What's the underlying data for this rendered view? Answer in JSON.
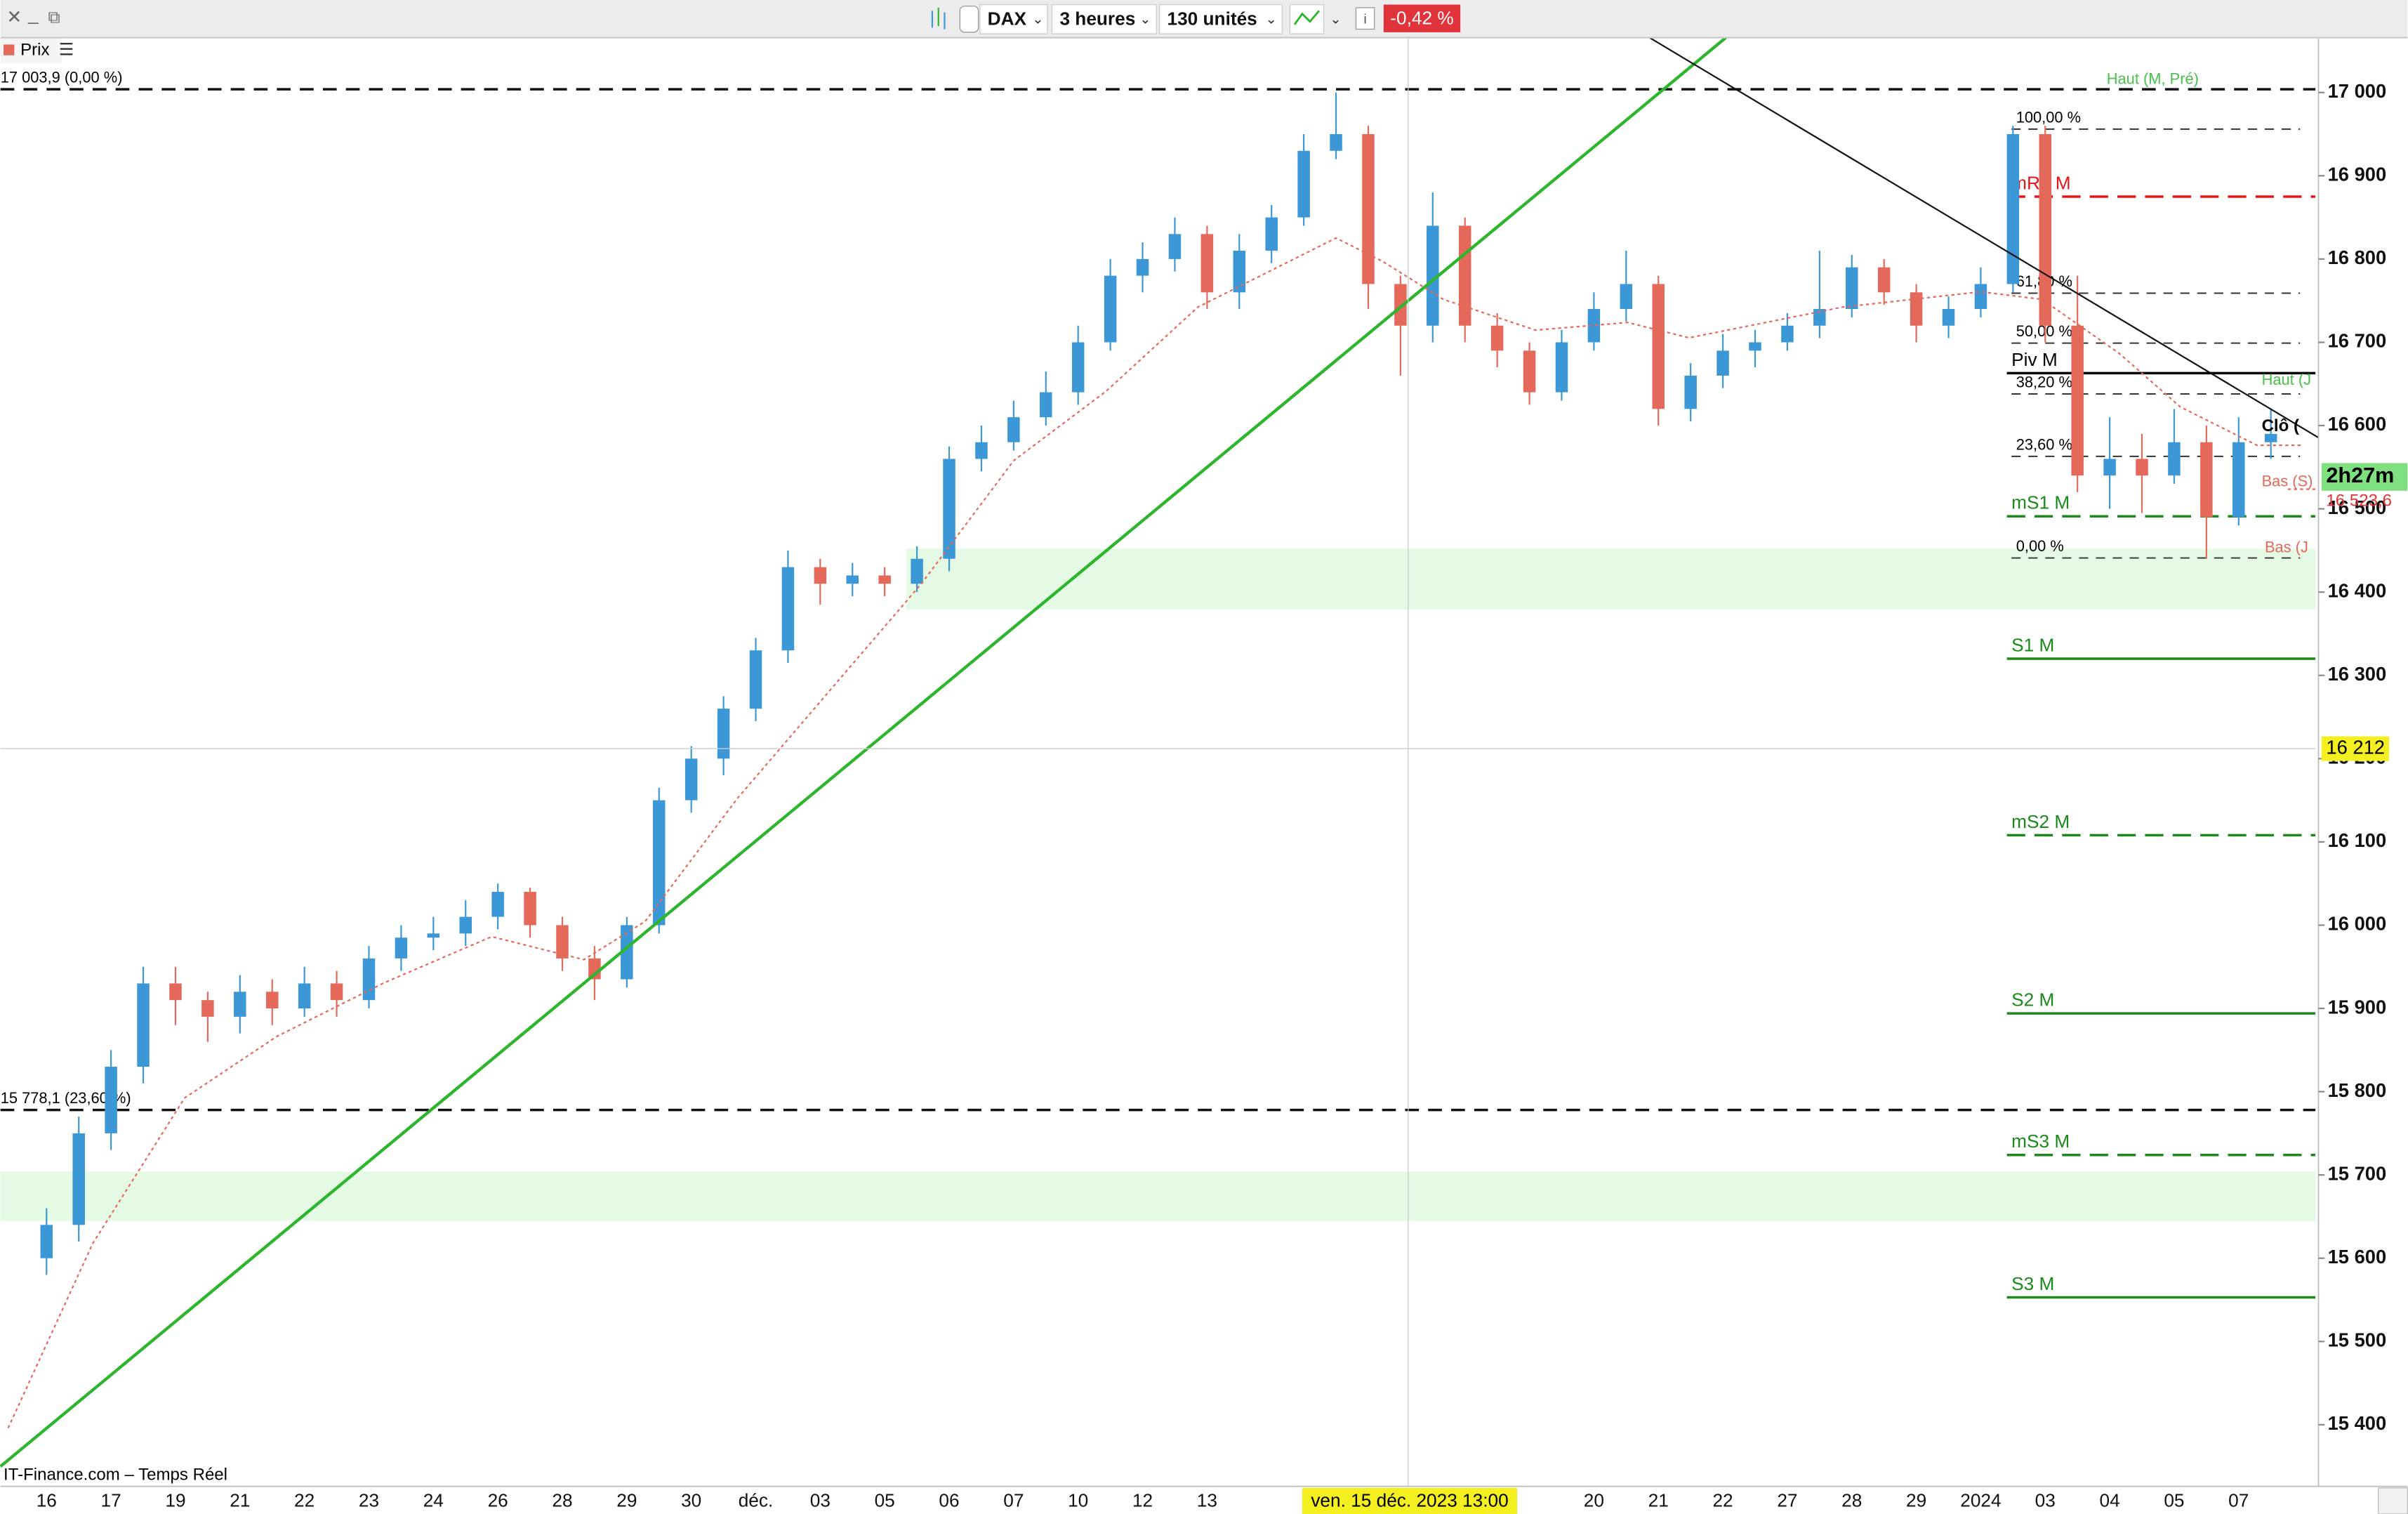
{
  "toolbar": {
    "symbol": "DAX",
    "period": "3 heures",
    "units": "130 unités",
    "change": "-0,42 %",
    "panel": "Prix"
  },
  "chart_data": {
    "type": "candlestick",
    "source": "IT-Finance.com – Temps Réel",
    "categories": [
      "16",
      null,
      "17",
      null,
      "19",
      null,
      "21",
      null,
      "22",
      null,
      "23",
      null,
      "24",
      null,
      "26",
      null,
      "28",
      null,
      "29",
      null,
      "30",
      null,
      "déc.",
      null,
      "03",
      null,
      "05",
      null,
      "06",
      null,
      "07",
      null,
      "10",
      null,
      "12",
      null,
      "13",
      null,
      null,
      null,
      null,
      null,
      null,
      null,
      null,
      null,
      null,
      null,
      "20",
      null,
      "21",
      null,
      "22",
      null,
      "27",
      null,
      "28",
      null,
      "29",
      null,
      "2024",
      null,
      "03",
      null,
      "04",
      null,
      "05",
      null,
      "07",
      null
    ],
    "ohlc": [
      [
        15600,
        15660,
        15580,
        15640
      ],
      [
        15640,
        15770,
        15620,
        15750
      ],
      [
        15750,
        15850,
        15730,
        15830
      ],
      [
        15830,
        15950,
        15810,
        15930
      ],
      [
        15930,
        15950,
        15880,
        15910
      ],
      [
        15910,
        15920,
        15860,
        15890
      ],
      [
        15890,
        15940,
        15870,
        15920
      ],
      [
        15920,
        15935,
        15880,
        15900
      ],
      [
        15900,
        15950,
        15890,
        15930
      ],
      [
        15930,
        15945,
        15890,
        15910
      ],
      [
        15910,
        15975,
        15900,
        15960
      ],
      [
        15960,
        16000,
        15945,
        15985
      ],
      [
        15985,
        16010,
        15970,
        15990
      ],
      [
        15990,
        16030,
        15975,
        16010
      ],
      [
        16010,
        16050,
        15995,
        16040
      ],
      [
        16040,
        16045,
        15985,
        16000
      ],
      [
        16000,
        16010,
        15945,
        15960
      ],
      [
        15960,
        15975,
        15910,
        15935
      ],
      [
        15935,
        16010,
        15925,
        16000
      ],
      [
        16000,
        16165,
        15990,
        16150
      ],
      [
        16150,
        16215,
        16135,
        16200
      ],
      [
        16200,
        16275,
        16180,
        16260
      ],
      [
        16260,
        16345,
        16245,
        16330
      ],
      [
        16330,
        16450,
        16315,
        16430
      ],
      [
        16430,
        16440,
        16385,
        16410
      ],
      [
        16410,
        16435,
        16395,
        16420
      ],
      [
        16420,
        16430,
        16395,
        16410
      ],
      [
        16410,
        16455,
        16400,
        16440
      ],
      [
        16440,
        16575,
        16425,
        16560
      ],
      [
        16560,
        16600,
        16545,
        16580
      ],
      [
        16580,
        16630,
        16570,
        16610
      ],
      [
        16610,
        16665,
        16600,
        16640
      ],
      [
        16640,
        16720,
        16625,
        16700
      ],
      [
        16700,
        16800,
        16690,
        16780
      ],
      [
        16780,
        16820,
        16760,
        16800
      ],
      [
        16800,
        16850,
        16785,
        16830
      ],
      [
        16830,
        16840,
        16740,
        16760
      ],
      [
        16760,
        16830,
        16740,
        16810
      ],
      [
        16810,
        16865,
        16795,
        16850
      ],
      [
        16850,
        16950,
        16840,
        16930
      ],
      [
        16930,
        17000,
        16920,
        16950
      ],
      [
        16950,
        16960,
        16740,
        16770
      ],
      [
        16770,
        16780,
        16660,
        16720
      ],
      [
        16720,
        16880,
        16700,
        16840
      ],
      [
        16840,
        16850,
        16700,
        16720
      ],
      [
        16720,
        16735,
        16670,
        16690
      ],
      [
        16690,
        16700,
        16625,
        16640
      ],
      [
        16640,
        16715,
        16630,
        16700
      ],
      [
        16700,
        16760,
        16690,
        16740
      ],
      [
        16740,
        16810,
        16725,
        16770
      ],
      [
        16770,
        16780,
        16600,
        16620
      ],
      [
        16620,
        16675,
        16605,
        16660
      ],
      [
        16660,
        16710,
        16645,
        16690
      ],
      [
        16690,
        16715,
        16670,
        16700
      ],
      [
        16700,
        16735,
        16690,
        16720
      ],
      [
        16720,
        16810,
        16705,
        16740
      ],
      [
        16740,
        16805,
        16730,
        16790
      ],
      [
        16790,
        16800,
        16745,
        16760
      ],
      [
        16760,
        16770,
        16700,
        16720
      ],
      [
        16720,
        16755,
        16705,
        16740
      ],
      [
        16740,
        16790,
        16730,
        16770
      ],
      [
        16770,
        16960,
        16760,
        16950
      ],
      [
        16950,
        16960,
        16700,
        16720
      ],
      [
        16720,
        16780,
        16520,
        16540
      ],
      [
        16540,
        16610,
        16500,
        16560
      ],
      [
        16560,
        16590,
        16495,
        16540
      ],
      [
        16540,
        16620,
        16530,
        16580
      ],
      [
        16580,
        16600,
        16440,
        16490
      ],
      [
        16490,
        16610,
        16480,
        16580
      ],
      [
        16580,
        16620,
        16560,
        16590
      ]
    ],
    "up_color": "#3b97d6",
    "down_color": "#e5695a",
    "ylim": [
      15326,
      17065
    ],
    "yticks": [
      {
        "value": 15400,
        "label": "15 400"
      },
      {
        "value": 15500,
        "label": "15 500"
      },
      {
        "value": 15600,
        "label": "15 600"
      },
      {
        "value": 15700,
        "label": "15 700"
      },
      {
        "value": 15800,
        "label": "15 800"
      },
      {
        "value": 15900,
        "label": "15 900"
      },
      {
        "value": 16000,
        "label": "16 000"
      },
      {
        "value": 16100,
        "label": "16 100"
      },
      {
        "value": 16200,
        "label": "16 200"
      },
      {
        "value": 16300,
        "label": "16 300"
      },
      {
        "value": 16400,
        "label": "16 400"
      },
      {
        "value": 16500,
        "label": "16 500"
      },
      {
        "value": 16600,
        "label": "16 600"
      },
      {
        "value": 16700,
        "label": "16 700"
      },
      {
        "value": 16800,
        "label": "16 800"
      },
      {
        "value": 16900,
        "label": "16 900"
      },
      {
        "value": 17000,
        "label": "17 000"
      }
    ],
    "retracement_lines": [
      {
        "value": 17003.9,
        "label": "17 003,9 (0,00 %)"
      },
      {
        "value": 15778.1,
        "label": "15 778,1 (23,60 %)"
      }
    ],
    "pivots": [
      {
        "label": "mR1 M",
        "value": 16875,
        "color": "#e0181b",
        "dashed": true
      },
      {
        "label": "Piv M",
        "value": 16663,
        "color": "#000000",
        "dashed": false
      },
      {
        "label": "mS1 M",
        "value": 16491,
        "color": "#1a8a1a",
        "dashed": true
      },
      {
        "label": "S1 M",
        "value": 16320,
        "color": "#1a8a1a",
        "dashed": false
      },
      {
        "label": "mS2 M",
        "value": 16108,
        "color": "#1a8a1a",
        "dashed": true
      },
      {
        "label": "S2 M",
        "value": 15894,
        "color": "#1a8a1a",
        "dashed": false
      },
      {
        "label": "mS3 M",
        "value": 15724,
        "color": "#1a8a1a",
        "dashed": true
      },
      {
        "label": "S3 M",
        "value": 15553,
        "color": "#1a8a1a",
        "dashed": false
      }
    ],
    "fibonacci": [
      {
        "label": "100,00 %",
        "value": 16956
      },
      {
        "label": "61,80 %",
        "value": 16759
      },
      {
        "label": "50,00 %",
        "value": 16699
      },
      {
        "label": "38,20 %",
        "value": 16638
      },
      {
        "label": "23,60 %",
        "value": 16563
      },
      {
        "label": "0,00 %",
        "value": 16441
      }
    ],
    "zones": [
      {
        "from": 16379,
        "to": 16452
      },
      {
        "from": 15645,
        "to": 15704
      }
    ],
    "zone_color": "#e4fae4",
    "crosshair": {
      "price": {
        "value": 16212,
        "label": "16 212"
      },
      "time_label": "ven. 15 déc. 2023 13:00"
    },
    "last_price": {
      "value": 16523.6,
      "label": "16 523,6"
    },
    "countdown": "2h27m",
    "annotations": [
      "Haut (M, Pré)",
      "Haut (J",
      "Clô (",
      "Bas (S)",
      "Bas (J"
    ]
  }
}
